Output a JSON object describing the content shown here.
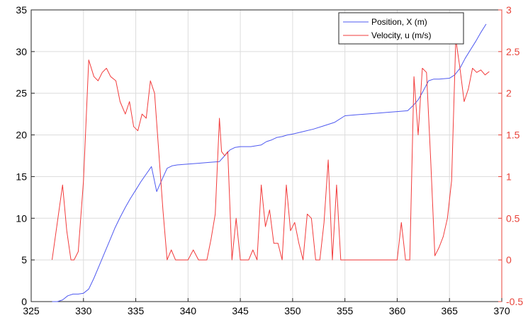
{
  "chart_data": {
    "type": "line",
    "title": "",
    "xlabel": "",
    "ylabel_left": "",
    "ylabel_right": "",
    "xlim": [
      325,
      370
    ],
    "ylim_left": [
      0,
      35
    ],
    "ylim_right": [
      -0.5,
      3
    ],
    "x_ticks": [
      "325",
      "330",
      "335",
      "340",
      "345",
      "350",
      "355",
      "360",
      "365",
      "370"
    ],
    "y_left_ticks": [
      "0",
      "5",
      "10",
      "15",
      "20",
      "25",
      "30",
      "35"
    ],
    "y_right_ticks": [
      "-0.5",
      "0",
      "0.5",
      "1",
      "1.5",
      "2",
      "2.5",
      "3"
    ],
    "grid": true,
    "legend_position": "top-right",
    "colors": {
      "left_axis": "#000000",
      "right_axis": "#e8433a",
      "grid": "#dcdcdc"
    },
    "series": [
      {
        "name": "Position, X (m)",
        "axis": "left",
        "color": "#4e59f0",
        "x": [
          327,
          327.5,
          328,
          328.5,
          329,
          329.5,
          330,
          330.5,
          331,
          331.5,
          332,
          332.5,
          333,
          333.5,
          334,
          334.5,
          335,
          335.5,
          336,
          336.5,
          337,
          337.5,
          338,
          338.5,
          339,
          340,
          341,
          342,
          343,
          343.5,
          344,
          344.5,
          345,
          346,
          347,
          347.5,
          348,
          348.5,
          349,
          349.5,
          350,
          351,
          352,
          353,
          354,
          355,
          356,
          357,
          358,
          359,
          360,
          361,
          361.5,
          362,
          362.5,
          363,
          363.5,
          364,
          365,
          365.5,
          366,
          366.5,
          367,
          367.5,
          368,
          368.5
        ],
        "y": [
          0,
          0,
          0.2,
          0.7,
          0.9,
          0.9,
          1.0,
          1.5,
          2.8,
          4.3,
          5.8,
          7.3,
          8.8,
          10.1,
          11.3,
          12.4,
          13.4,
          14.4,
          15.3,
          16.2,
          13.2,
          14.6,
          16.0,
          16.3,
          16.4,
          16.5,
          16.6,
          16.7,
          16.8,
          17.5,
          18.2,
          18.5,
          18.6,
          18.6,
          18.8,
          19.2,
          19.4,
          19.7,
          19.8,
          20.0,
          20.1,
          20.4,
          20.7,
          21.1,
          21.5,
          22.3,
          22.4,
          22.5,
          22.6,
          22.7,
          22.8,
          22.9,
          23.5,
          24.2,
          25.3,
          26.5,
          26.7,
          26.7,
          26.8,
          27.2,
          28.0,
          29.2,
          30.2,
          31.2,
          32.3,
          33.3
        ]
      },
      {
        "name": "Velocity, u (m/s)",
        "axis": "right",
        "color": "#f23b3b",
        "x": [
          327,
          327.5,
          328,
          328.4,
          328.8,
          329.1,
          329.5,
          330,
          330.5,
          331,
          331.4,
          331.8,
          332.2,
          332.6,
          333.1,
          333.5,
          334,
          334.4,
          334.8,
          335.2,
          335.6,
          336,
          336.4,
          336.8,
          337.2,
          337.6,
          338,
          338.4,
          338.8,
          339.2,
          339.6,
          340,
          340.5,
          341,
          341.4,
          341.8,
          342.2,
          342.6,
          343,
          343.2,
          343.5,
          343.8,
          344.2,
          344.6,
          345,
          345.4,
          345.8,
          346.2,
          346.6,
          347,
          347.4,
          347.8,
          348.2,
          348.6,
          349,
          349.4,
          349.8,
          350.2,
          350.6,
          351,
          351.4,
          351.8,
          352.2,
          352.6,
          353,
          353.4,
          353.8,
          354.2,
          354.6,
          355,
          356,
          357,
          358,
          359,
          360,
          360.4,
          360.8,
          361.2,
          361.6,
          362,
          362.4,
          362.8,
          363.2,
          363.6,
          364,
          364.4,
          364.8,
          365.2,
          365.6,
          366,
          366.4,
          366.8,
          367.2,
          367.6,
          368,
          368.4,
          368.8
        ],
        "y": [
          0,
          0.45,
          0.9,
          0.35,
          0,
          0,
          0.1,
          0.95,
          2.4,
          2.2,
          2.15,
          2.25,
          2.3,
          2.2,
          2.15,
          1.9,
          1.75,
          1.9,
          1.6,
          1.55,
          1.75,
          1.7,
          2.15,
          2.0,
          1.3,
          0.6,
          0,
          0.12,
          0,
          0,
          0,
          0,
          0.12,
          0,
          0,
          0,
          0.25,
          0.55,
          1.7,
          1.3,
          1.25,
          1.3,
          0,
          0.5,
          0,
          0,
          0,
          0.12,
          0,
          0.9,
          0.4,
          0.6,
          0.2,
          0.2,
          0,
          0.9,
          0.35,
          0.45,
          0.2,
          0,
          0.55,
          0.5,
          0,
          0,
          0.45,
          1.2,
          0,
          0.9,
          0,
          0,
          0,
          0,
          0,
          0,
          0,
          0.45,
          0,
          0,
          2.2,
          1.5,
          2.3,
          2.25,
          1.2,
          0.05,
          0.15,
          0.28,
          0.5,
          0.95,
          2.65,
          2.3,
          1.9,
          2.05,
          2.3,
          2.25,
          2.28,
          2.22,
          2.26
        ]
      }
    ]
  }
}
